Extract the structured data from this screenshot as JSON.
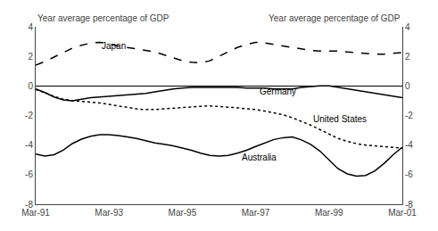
{
  "chart_data": {
    "type": "line",
    "ylabel": "Year average percentage of GDP",
    "y2label": "Year average percentage of GDP",
    "x": [
      1991,
      1991.25625,
      1991.5125,
      1991.76875,
      1992.025,
      1992.28125,
      1992.5375,
      1992.79375,
      1993.05,
      1993.30625,
      1993.5625,
      1993.81875,
      1994.075,
      1994.33125,
      1994.5875,
      1994.84375,
      1995.1,
      1995.35625,
      1995.6125,
      1995.86875,
      1996.125,
      1996.38125,
      1996.6375,
      1996.89375,
      1997.15,
      1997.40625,
      1997.6625,
      1997.91875,
      1998.175,
      1998.43125,
      1998.6875,
      1998.94375,
      1999.2,
      1999.45625,
      1999.7125,
      1999.96875,
      2000.225,
      2000.48125,
      2000.7375,
      2000.99375,
      2001.25
    ],
    "xlim": [
      1991,
      2001.25
    ],
    "xticks": [
      {
        "value": 1991,
        "label": "Mar-91"
      },
      {
        "value": 1993.05,
        "label": "Mar-93"
      },
      {
        "value": 1995.1,
        "label": "Mar-95"
      },
      {
        "value": 1997.15,
        "label": "Mar-97"
      },
      {
        "value": 1999.2,
        "label": "Mar-99"
      },
      {
        "value": 2001.25,
        "label": "Mar-01"
      }
    ],
    "ylim": [
      -8,
      4
    ],
    "yticks": [
      -8,
      -6,
      -4,
      -2,
      0,
      2,
      4
    ],
    "y2lim": [
      -8,
      4
    ],
    "y2ticks": [
      -8,
      -6,
      -4,
      -2,
      0,
      2,
      4
    ],
    "grid": false,
    "series": [
      {
        "color": "#000000",
        "line_style": "dashed",
        "values": [
          1.4,
          1.65,
          1.95,
          2.25,
          2.55,
          2.75,
          2.9,
          2.95,
          2.85,
          2.7,
          2.6,
          2.5,
          2.4,
          2.3,
          2.1,
          1.9,
          1.7,
          1.6,
          1.55,
          1.7,
          2.0,
          2.3,
          2.6,
          2.8,
          2.95,
          2.9,
          2.8,
          2.7,
          2.6,
          2.5,
          2.4,
          2.35,
          2.35,
          2.35,
          2.3,
          2.25,
          2.2,
          2.15,
          2.15,
          2.2,
          2.25
        ]
      },
      {
        "color": "#000000",
        "line_style": "solid",
        "values": [
          -0.2,
          -0.45,
          -0.75,
          -0.95,
          -1.0,
          -0.9,
          -0.8,
          -0.75,
          -0.7,
          -0.65,
          -0.6,
          -0.55,
          -0.5,
          -0.4,
          -0.3,
          -0.2,
          -0.15,
          -0.1,
          -0.1,
          -0.1,
          -0.1,
          -0.1,
          -0.1,
          -0.15,
          -0.15,
          -0.15,
          -0.2,
          -0.2,
          -0.2,
          -0.1,
          -0.05,
          0.0,
          0.0,
          -0.1,
          -0.2,
          -0.3,
          -0.4,
          -0.5,
          -0.6,
          -0.7,
          -0.8
        ]
      },
      {
        "color": "#000000",
        "line_style": "dotted",
        "values": [
          -0.25,
          -0.45,
          -0.7,
          -0.9,
          -1.0,
          -1.05,
          -1.1,
          -1.15,
          -1.25,
          -1.35,
          -1.45,
          -1.55,
          -1.6,
          -1.6,
          -1.55,
          -1.5,
          -1.45,
          -1.4,
          -1.38,
          -1.35,
          -1.38,
          -1.42,
          -1.48,
          -1.55,
          -1.6,
          -1.7,
          -1.82,
          -1.95,
          -2.15,
          -2.4,
          -2.65,
          -2.95,
          -3.25,
          -3.55,
          -3.75,
          -3.9,
          -4.0,
          -4.05,
          -4.1,
          -4.15,
          -4.2
        ]
      },
      {
        "color": "#000000",
        "line_style": "solid",
        "values": [
          -4.6,
          -4.75,
          -4.65,
          -4.35,
          -3.9,
          -3.6,
          -3.4,
          -3.3,
          -3.3,
          -3.35,
          -3.45,
          -3.55,
          -3.7,
          -3.85,
          -3.95,
          -4.05,
          -4.2,
          -4.35,
          -4.55,
          -4.7,
          -4.75,
          -4.7,
          -4.55,
          -4.35,
          -4.1,
          -3.85,
          -3.62,
          -3.5,
          -3.45,
          -3.65,
          -3.95,
          -4.4,
          -5.0,
          -5.6,
          -5.95,
          -6.1,
          -6.05,
          -5.75,
          -5.25,
          -4.65,
          -4.15
        ]
      }
    ],
    "annotations": [
      {
        "text": "Japan",
        "x": 1992.8,
        "y": 2.72
      },
      {
        "text": "Germany",
        "x": 1997.2,
        "y": -0.38
      },
      {
        "text": "United States",
        "x": 1998.7,
        "y": -2.25
      },
      {
        "text": "Australia",
        "x": 1996.7,
        "y": -4.85
      }
    ]
  }
}
